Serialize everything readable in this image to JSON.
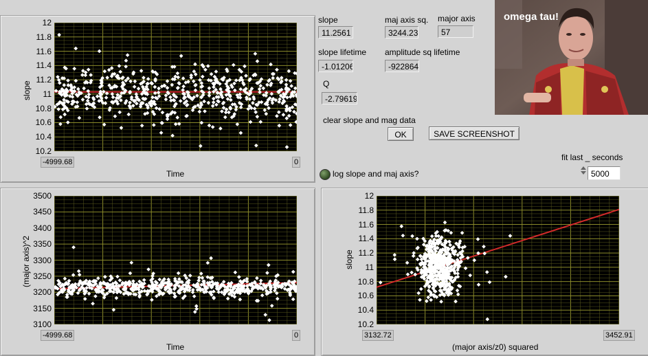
{
  "colors": {
    "plot_bg": "#000000",
    "grid": "#5a5a1e",
    "points": "#ffffff",
    "fit": "#d32a2a"
  },
  "chart_data": [
    {
      "type": "scatter",
      "title": "",
      "xlabel": "Time",
      "ylabel": "slope",
      "xlim": [
        -4999.68,
        0
      ],
      "ylim": [
        10.2,
        12
      ],
      "x_min_label": "-4999.68",
      "x_max_label": "0",
      "yticks": [
        "12",
        "11.8",
        "11.6",
        "11.4",
        "11.2",
        "11",
        "10.8",
        "10.6",
        "10.4",
        "10.2"
      ],
      "grid": true,
      "point_count": 620,
      "spread": {
        "center": 11.02,
        "sd": 0.2
      },
      "fit_line": [
        [
          -4999.68,
          11.03
        ],
        [
          0,
          11.03
        ]
      ]
    },
    {
      "type": "scatter",
      "title": "",
      "xlabel": "Time",
      "ylabel": "(major axis)^2",
      "xlim": [
        -4999.68,
        0
      ],
      "ylim": [
        3100,
        3500
      ],
      "x_min_label": "-4999.68",
      "x_max_label": "0",
      "yticks": [
        "3500",
        "3450",
        "3400",
        "3350",
        "3300",
        "3250",
        "3200",
        "3150",
        "3100"
      ],
      "grid": true,
      "point_count": 620,
      "spread": {
        "center": 3215,
        "sd": 14
      },
      "fit_line": [
        [
          -4999.68,
          3211
        ],
        [
          0,
          3230
        ]
      ]
    },
    {
      "type": "scatter",
      "title": "",
      "xlabel": "(major axis/z0) squared",
      "ylabel": "slope",
      "xlim": [
        3132.72,
        3452.91
      ],
      "ylim": [
        10.2,
        12
      ],
      "x_min_label": "3132.72",
      "x_max_label": "3452.91",
      "yticks": [
        "12",
        "11.8",
        "11.6",
        "11.4",
        "11.2",
        "11",
        "10.8",
        "10.6",
        "10.4",
        "10.2"
      ],
      "grid": true,
      "point_count": 560,
      "spread": {
        "center_x": 3215,
        "sd_x": 14,
        "center_y": 11.02,
        "sd_y": 0.2
      },
      "fit_line": [
        [
          3132.72,
          10.72
        ],
        [
          3452.91,
          11.81
        ]
      ]
    }
  ],
  "indicators": {
    "slope": {
      "label": "slope",
      "value": "11.2561"
    },
    "maj_axis_sq": {
      "label": "maj axis sq.",
      "value": "3244.23"
    },
    "major_axis": {
      "label": "major axis",
      "value": "57"
    },
    "slope_lifetime": {
      "label": "slope lifetime",
      "value": "-1.01206"
    },
    "amp_sq_lifetime": {
      "label": "amplitude sq lifetime",
      "value": "-922864"
    },
    "q": {
      "label": "Q",
      "value": "-2.79619"
    }
  },
  "controls": {
    "clear_label": "clear slope and mag data",
    "ok_button": "OK",
    "save_button": "SAVE SCREENSHOT",
    "log_label": "log slope and maj axis?",
    "fit_label": "fit last _ seconds",
    "fit_value": "5000"
  },
  "image": {
    "caption": "omega tau!"
  }
}
